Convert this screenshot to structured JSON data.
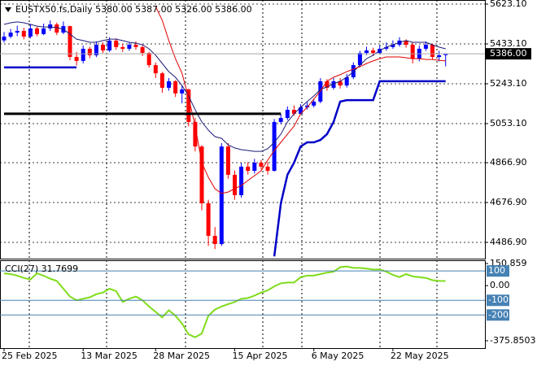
{
  "chart_data": [
    {
      "type": "candlestick",
      "title": "EUSTX50.fs,Daily  5380.00 5387.00 5326.00 5386.00",
      "categories": [
        "25 Feb 2025",
        null,
        null,
        null,
        null,
        null,
        null,
        null,
        null,
        null,
        null,
        null,
        "13 Mar 2025",
        null,
        null,
        null,
        null,
        null,
        null,
        null,
        null,
        null,
        null,
        "28 Mar 2025",
        null,
        null,
        null,
        null,
        null,
        null,
        null,
        null,
        null,
        null,
        null,
        "15 Apr 2025",
        null,
        null,
        null,
        null,
        null,
        null,
        null,
        null,
        null,
        null,
        null,
        "6 May 2025",
        null,
        null,
        null,
        null,
        null,
        null,
        null,
        null,
        null,
        null,
        null,
        "22 May 2025",
        null,
        null,
        null,
        null,
        null,
        null,
        null,
        null
      ],
      "open": [
        5450,
        5468,
        5487,
        5495,
        5468,
        5507,
        5480,
        5507,
        5526,
        5487,
        5518,
        5371,
        5352,
        5410,
        5379,
        5429,
        5402,
        5449,
        5418,
        5410,
        5429,
        5418,
        5390,
        5332,
        5293,
        5224,
        5255,
        5197,
        5216,
        5061,
        4944,
        4673,
        4518,
        4479,
        4944,
        4809,
        4712,
        4848,
        4828,
        4867,
        4848,
        4828,
        5061,
        5080,
        5119,
        5100,
        5131,
        5139,
        5158,
        5255,
        5224,
        5255,
        5235,
        5274,
        5332,
        5390,
        5402,
        5390,
        5410,
        5418,
        5429,
        5449,
        5429,
        5363,
        5410,
        5429,
        5371,
        5380
      ],
      "high": [
        5490,
        5505,
        5520,
        5510,
        5525,
        5515,
        5530,
        5545,
        5535,
        5540,
        5520,
        5395,
        5425,
        5420,
        5445,
        5440,
        5465,
        5460,
        5435,
        5440,
        5445,
        5425,
        5395,
        5345,
        5300,
        5270,
        5260,
        5235,
        5220,
        5080,
        4950,
        4690,
        4560,
        4960,
        4960,
        4830,
        4865,
        4870,
        4885,
        4880,
        4870,
        5075,
        5100,
        5135,
        5140,
        5145,
        5155,
        5170,
        5270,
        5265,
        5270,
        5270,
        5290,
        5345,
        5400,
        5420,
        5415,
        5425,
        5440,
        5450,
        5465,
        5455,
        5440,
        5425,
        5445,
        5435,
        5400,
        5387
      ],
      "low": [
        5440,
        5460,
        5470,
        5455,
        5460,
        5470,
        5475,
        5495,
        5475,
        5480,
        5355,
        5330,
        5340,
        5365,
        5370,
        5390,
        5395,
        5405,
        5395,
        5400,
        5405,
        5375,
        5320,
        5270,
        5200,
        5210,
        5180,
        5150,
        5040,
        4920,
        4640,
        4470,
        4455,
        4470,
        4790,
        4690,
        4700,
        4810,
        4815,
        4835,
        4810,
        4825,
        5050,
        5070,
        5090,
        5095,
        5120,
        5130,
        5150,
        5210,
        5215,
        5220,
        5225,
        5265,
        5325,
        5380,
        5375,
        5385,
        5400,
        5410,
        5420,
        5415,
        5340,
        5350,
        5400,
        5360,
        5350,
        5326
      ],
      "close": [
        5468,
        5487,
        5495,
        5468,
        5507,
        5480,
        5507,
        5526,
        5487,
        5518,
        5371,
        5352,
        5410,
        5379,
        5429,
        5402,
        5449,
        5418,
        5410,
        5429,
        5418,
        5390,
        5332,
        5293,
        5224,
        5255,
        5197,
        5216,
        5061,
        4944,
        4673,
        4518,
        4479,
        4944,
        4809,
        4712,
        4848,
        4828,
        4867,
        4848,
        4828,
        5061,
        5080,
        5119,
        5100,
        5131,
        5139,
        5158,
        5255,
        5224,
        5255,
        5235,
        5274,
        5332,
        5390,
        5402,
        5390,
        5410,
        5418,
        5429,
        5449,
        5429,
        5363,
        5410,
        5429,
        5371,
        5379,
        5386
      ],
      "up_color": "#0000ff",
      "down_color": "#ff0000",
      "lines": [
        {
          "color": "#1c1c7a",
          "width": 1,
          "values": [
            5526,
            5534,
            5538,
            5534,
            5526,
            5518,
            5514,
            5514,
            5511,
            5503,
            5480,
            5456,
            5449,
            5441,
            5441,
            5449,
            5456,
            5456,
            5449,
            5441,
            5437,
            5429,
            5410,
            5379,
            5340,
            5301,
            5274,
            5235,
            5185,
            5119,
            5061,
            5022,
            4991,
            4983,
            4952,
            4937,
            4929,
            4925,
            4921,
            4921,
            4933,
            4964,
            5003,
            5061,
            5100,
            5131,
            5158,
            5185,
            5216,
            5228,
            5243,
            5255,
            5274,
            5301,
            5332,
            5363,
            5379,
            5402,
            5418,
            5429,
            5441,
            5449,
            5441,
            5441,
            5441,
            5429,
            5418,
            5410
          ]
        },
        {
          "color": "#e00000",
          "width": 1,
          "values": [
            null,
            null,
            null,
            null,
            null,
            null,
            null,
            null,
            null,
            null,
            null,
            null,
            null,
            null,
            null,
            null,
            null,
            null,
            null,
            null,
            null,
            null,
            null,
            5611,
            5546,
            5449,
            5363,
            5293,
            5177,
            5041,
            4867,
            4797,
            4743,
            4720,
            4727,
            4743,
            4758,
            4782,
            4805,
            4828,
            4879,
            4925,
            4964,
            5003,
            5041,
            5100,
            5131,
            5170,
            5208,
            5255,
            5274,
            5286,
            5301,
            5313,
            5324,
            5340,
            5352,
            5363,
            5371,
            5371,
            5371,
            5367,
            5363,
            5363,
            5359,
            5359,
            5355,
            5352
          ]
        },
        {
          "color": "#0000c8",
          "width": 2.5,
          "values": [
            5321,
            5321,
            5321,
            5321,
            5321,
            5321,
            5321,
            5321,
            5321,
            5321,
            5321,
            5321,
            null,
            null,
            null,
            null,
            null,
            null,
            null,
            null,
            null,
            null,
            null,
            null,
            null,
            null,
            null,
            null,
            null,
            null,
            null,
            null,
            null,
            null,
            null,
            null,
            null,
            null,
            null,
            null,
            null,
            4420,
            4673,
            4809,
            4867,
            4944,
            4964,
            4964,
            4975,
            5003,
            5061,
            5158,
            5165,
            5165,
            5165,
            5165,
            5165,
            5255,
            5255,
            5255,
            5255,
            5255,
            5255,
            5255,
            5255,
            5255,
            5255,
            5255
          ]
        },
        {
          "color": "#000000",
          "width": 3,
          "values": [
            5100,
            5100,
            5100,
            5100,
            5100,
            5100,
            5100,
            5100,
            5100,
            5100,
            5100,
            5100,
            5100,
            5100,
            5100,
            5100,
            5100,
            5100,
            5100,
            5100,
            5100,
            5100,
            5100,
            5100,
            5100,
            5100,
            5100,
            5100,
            5100,
            5100,
            5100,
            5100,
            5100,
            5100,
            5100,
            5100,
            5100,
            5100,
            5100,
            5100,
            5100,
            5100,
            5100,
            null,
            null,
            null,
            null,
            null,
            null,
            null,
            null,
            null,
            null,
            null,
            null,
            null,
            null,
            null,
            null,
            null,
            null,
            null,
            null,
            null,
            null,
            null,
            null,
            null
          ]
        }
      ],
      "last_price": {
        "value": 5386,
        "label": "5386.00"
      },
      "ylim": [
        4409.3,
        5642.5
      ],
      "yticks": [
        {
          "value": 5623.1,
          "label": "5623.10"
        },
        {
          "value": 5433.1,
          "label": "5433.10"
        },
        {
          "value": 5243.1,
          "label": "5243.10"
        },
        {
          "value": 5053.1,
          "label": "5053.10"
        },
        {
          "value": 4866.9,
          "label": "4866.90"
        },
        {
          "value": 4676.9,
          "label": "4676.90"
        },
        {
          "value": 4486.9,
          "label": "4486.90"
        }
      ],
      "grid": true
    },
    {
      "type": "line",
      "title": "CCI(27) 31.7699",
      "color": "#7fdc1a",
      "values": [
        84,
        79,
        68,
        53,
        42,
        84,
        68,
        47,
        32,
        -21,
        -74,
        -100,
        -89,
        -79,
        -58,
        -47,
        -21,
        -37,
        -111,
        -89,
        -74,
        -100,
        -142,
        -179,
        -216,
        -168,
        -205,
        -258,
        -332,
        -352,
        -326,
        -205,
        -163,
        -142,
        -126,
        -111,
        -89,
        -84,
        -68,
        -47,
        -32,
        -5,
        16,
        21,
        21,
        58,
        68,
        68,
        79,
        89,
        95,
        126,
        131,
        121,
        121,
        116,
        110,
        110,
        95,
        74,
        58,
        79,
        63,
        58,
        53,
        37,
        32,
        31.7699
      ],
      "ylim": [
        -375.8503,
        150.859
      ],
      "yticks": [
        150.859,
        {
          "value": 0,
          "label": "0.00"
        },
        -375.8503
      ],
      "levels": [
        100,
        -100,
        -200
      ],
      "level_color": "#4682b4"
    }
  ]
}
